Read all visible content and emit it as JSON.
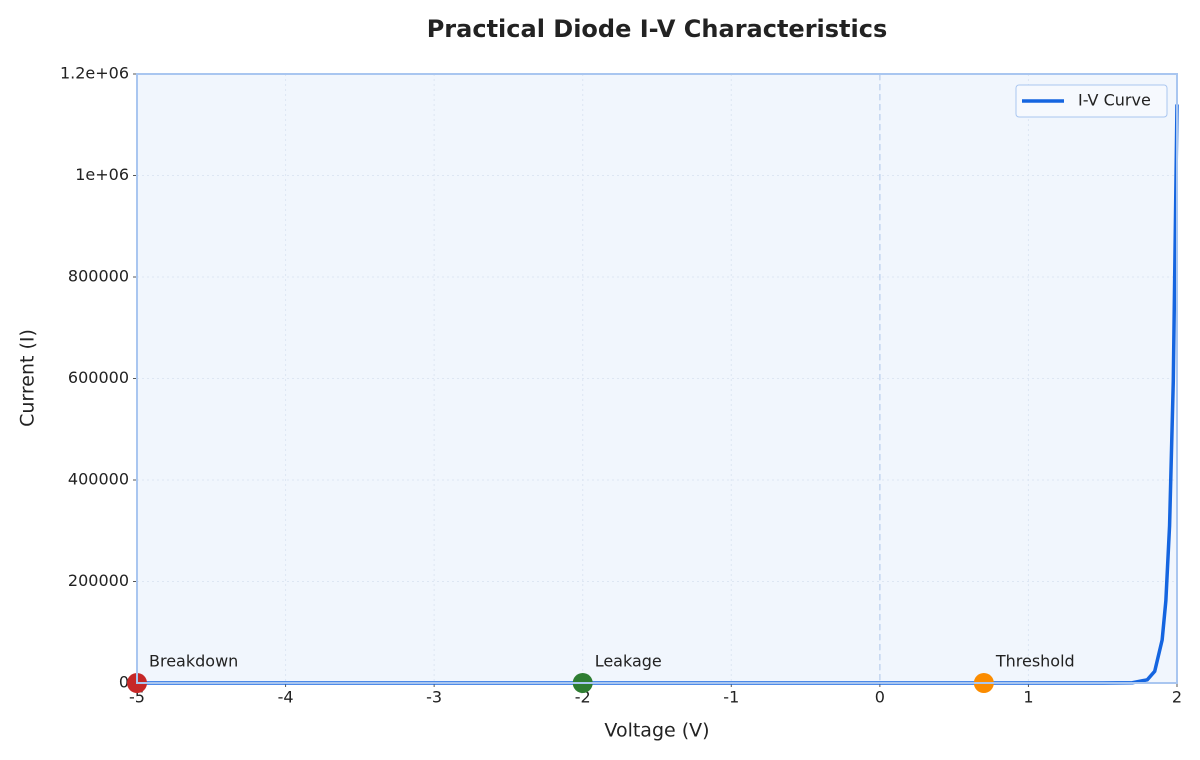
{
  "chart_data": {
    "type": "line",
    "title": "Practical Diode I-V Characteristics",
    "x_label": "Voltage (V)",
    "y_label": "Current (I)",
    "x": [
      -5,
      -4,
      -3,
      -2,
      -1,
      0,
      1,
      1.5,
      1.7,
      1.8,
      1.85,
      1.9,
      1.925,
      1.95,
      1.975,
      2
    ],
    "series": [
      {
        "name": "I-V Curve",
        "color": "#1565e0",
        "values": [
          0,
          0,
          0,
          0,
          0,
          0,
          0,
          3,
          467,
          6300,
          23000,
          84700,
          162000,
          310000,
          595000,
          1140000
        ]
      }
    ],
    "points": [
      {
        "text": "Breakdown",
        "x": -5,
        "y": 0,
        "color": "#c62828"
      },
      {
        "text": "Leakage",
        "x": -2,
        "y": 0,
        "color": "#2e7d32"
      },
      {
        "text": "Threshold",
        "x": 0.7,
        "y": 0,
        "color": "#fb8c00"
      }
    ],
    "xlim": [
      -5,
      2
    ],
    "xticks": [
      -5,
      -4,
      -3,
      -2,
      -1,
      0,
      1,
      2
    ],
    "ylim": [
      0,
      1200000
    ],
    "yticks": [
      0,
      200000,
      400000,
      600000,
      800000,
      {
        "value": 1000000,
        "label": "1e+06"
      },
      {
        "value": 1200000,
        "label": "1.2e+06"
      }
    ],
    "vline": 0,
    "grid": true,
    "legend": "upper-right"
  }
}
